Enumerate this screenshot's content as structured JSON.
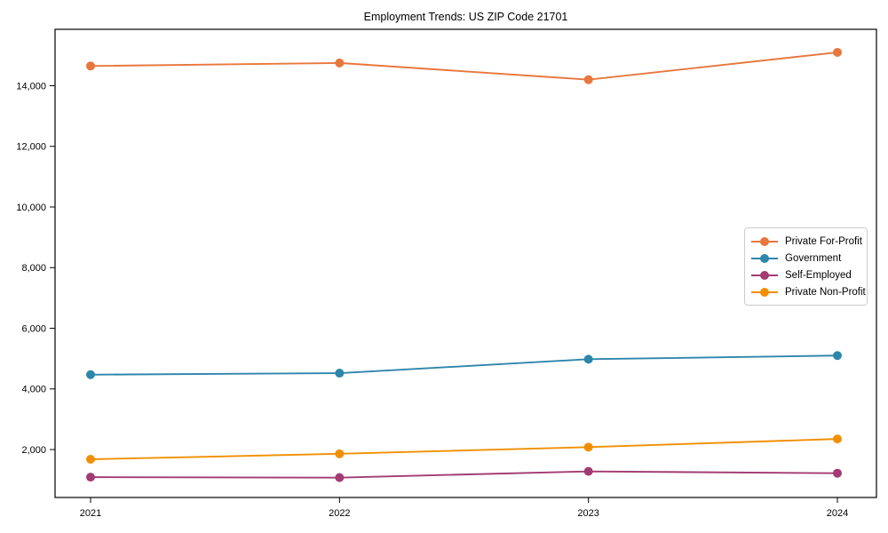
{
  "chart": {
    "title": "Employment Trends: US ZIP Code 21701"
  },
  "chart_data": {
    "type": "line",
    "title": "Employment Trends: US ZIP Code 21701",
    "xlabel": "",
    "ylabel": "",
    "categories": [
      "2021",
      "2022",
      "2023",
      "2024"
    ],
    "series": [
      {
        "name": "Private For-Profit",
        "color": "#E8773D",
        "values": [
          14650,
          14750,
          14200,
          15100
        ]
      },
      {
        "name": "Government",
        "color": "#2E86AB",
        "values": [
          4470,
          4520,
          4980,
          5100
        ]
      },
      {
        "name": "Self-Employed",
        "color": "#A23B72",
        "values": [
          1090,
          1075,
          1280,
          1220
        ]
      },
      {
        "name": "Private Non-Profit",
        "color": "#F18F01",
        "values": [
          1680,
          1860,
          2080,
          2350
        ]
      }
    ],
    "yticks": [
      {
        "value": 2000,
        "label": "2,000"
      },
      {
        "value": 4000,
        "label": "4,000"
      },
      {
        "value": 6000,
        "label": "6,000"
      },
      {
        "value": 8000,
        "label": "8,000"
      },
      {
        "value": 10000,
        "label": "10,000"
      },
      {
        "value": 12000,
        "label": "12,000"
      },
      {
        "value": 14000,
        "label": "14,000"
      }
    ],
    "ylim": [
      420,
      15860
    ],
    "grid": false,
    "marker": "circle",
    "legend": {
      "position": "center-right",
      "entries": [
        "Private For-Profit",
        "Government",
        "Self-Employed",
        "Private Non-Profit"
      ],
      "border_color": "#cccccc"
    },
    "axis_color": "#000000"
  }
}
